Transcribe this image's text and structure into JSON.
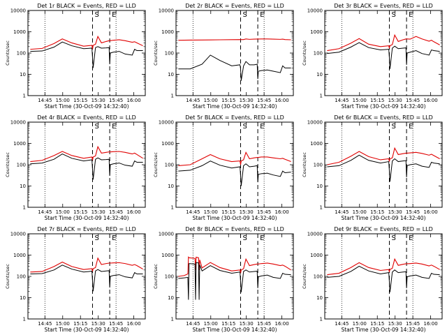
{
  "figure": {
    "panels": [
      {
        "title": "Det 1r BLACK = Events, RED = LLD",
        "ylabel": "Counts/sec",
        "xlabel": "Start Time (30-Oct-09 14:32:40)"
      },
      {
        "title": "Det 2r BLACK = Events, RED = LLD",
        "ylabel": "Counts/sec",
        "xlabel": "Start Time (30-Oct-09 14:32:40)"
      },
      {
        "title": "Det 3r BLACK = Events, RED = LLD",
        "ylabel": "Counts/sec",
        "xlabel": "Start Time (30-Oct-09 14:32:40)"
      },
      {
        "title": "Det 4r BLACK = Events, RED = LLD",
        "ylabel": "Counts/sec",
        "xlabel": "Start Time (30-Oct-09 14:32:40)"
      },
      {
        "title": "Det 5r BLACK = Events, RED = LLD",
        "ylabel": "Counts/sec",
        "xlabel": "Start Time (30-Oct-09 14:32:40)"
      },
      {
        "title": "Det 6r BLACK = Events, RED = LLD",
        "ylabel": "Counts/sec",
        "xlabel": "Start Time (30-Oct-09 14:32:40)"
      },
      {
        "title": "Det 7r BLACK = Events, RED = LLD",
        "ylabel": "Counts/sec",
        "xlabel": "Start Time (30-Oct-09 14:32:40)"
      },
      {
        "title": "Det 8r BLACK = Events, RED = LLD",
        "ylabel": "Counts/sec",
        "xlabel": "Start Time (30-Oct-09 14:32:40)"
      },
      {
        "title": "Det 9r BLACK = Events, RED = LLD",
        "ylabel": "Counts/sec",
        "xlabel": "Start Time (30-Oct-09 14:32:40)"
      }
    ],
    "marker_labels": [
      "S",
      "E"
    ]
  },
  "chart_data": {
    "type": "line",
    "x_tick_labels": [
      "14:45",
      "15:00",
      "15:15",
      "15:30",
      "15:45",
      "16:00"
    ],
    "x_tick_minutes": [
      12.33,
      27.33,
      42.33,
      57.33,
      72.33,
      87.33
    ],
    "xlim_minutes": [
      -2,
      97
    ],
    "yscale": "log",
    "ylim": [
      1,
      10000
    ],
    "y_tick_labels": [
      "1",
      "10",
      "100",
      "1000",
      "10000"
    ],
    "y_tick_values": [
      1,
      10,
      100,
      1000,
      10000
    ],
    "dotted_lines_minutes": [
      12.33,
      72.33
    ],
    "dashed_lines_minutes": [
      52.5,
      67.0
    ],
    "series_colors": {
      "events": "#000000",
      "lld": "#e00000"
    },
    "panels": [
      {
        "detector": "1r",
        "time_minutes": [
          0,
          10,
          20,
          27,
          35,
          45,
          52,
          52.5,
          53,
          55,
          57,
          60,
          64,
          66.5,
          67,
          67.5,
          70,
          75,
          80,
          86,
          88,
          90,
          95
        ],
        "lld": [
          150,
          165,
          280,
          460,
          300,
          210,
          230,
          150,
          230,
          260,
          600,
          300,
          350,
          380,
          380,
          380,
          400,
          420,
          380,
          320,
          340,
          300,
          220
        ],
        "events": [
          120,
          125,
          190,
          330,
          220,
          160,
          170,
          60,
          20,
          180,
          200,
          170,
          175,
          180,
          30,
          100,
          110,
          120,
          90,
          80,
          150,
          130,
          130
        ]
      },
      {
        "detector": "2r",
        "time_minutes": [
          0,
          10,
          20,
          27,
          35,
          45,
          52,
          52.5,
          53,
          55,
          57,
          60,
          64,
          66.5,
          67,
          67.5,
          70,
          75,
          80,
          86,
          88,
          90,
          95
        ],
        "lld": [
          400,
          405,
          410,
          415,
          420,
          425,
          430,
          425,
          430,
          430,
          460,
          440,
          450,
          455,
          455,
          455,
          460,
          460,
          450,
          440,
          450,
          430,
          420
        ],
        "events": [
          18,
          18,
          30,
          80,
          45,
          25,
          28,
          18,
          5,
          25,
          40,
          28,
          28,
          30,
          6,
          14,
          15,
          16,
          14,
          12,
          25,
          20,
          20
        ]
      },
      {
        "detector": "3r",
        "time_minutes": [
          0,
          10,
          20,
          27,
          35,
          45,
          52,
          52.5,
          53,
          55,
          57,
          60,
          64,
          66.5,
          67,
          67.5,
          70,
          75,
          80,
          86,
          88,
          90,
          95
        ],
        "lld": [
          130,
          160,
          290,
          480,
          260,
          200,
          220,
          170,
          220,
          250,
          700,
          350,
          420,
          460,
          460,
          460,
          450,
          600,
          460,
          360,
          400,
          340,
          240
        ],
        "events": [
          95,
          110,
          190,
          310,
          180,
          140,
          150,
          60,
          18,
          170,
          210,
          160,
          170,
          175,
          28,
          100,
          110,
          130,
          95,
          80,
          140,
          130,
          120
        ]
      },
      {
        "detector": "4r",
        "time_minutes": [
          0,
          10,
          20,
          27,
          35,
          45,
          52,
          52.5,
          53,
          55,
          57,
          60,
          64,
          66.5,
          67,
          67.5,
          70,
          75,
          80,
          86,
          88,
          90,
          95
        ],
        "lld": [
          140,
          160,
          270,
          420,
          270,
          200,
          230,
          160,
          230,
          260,
          700,
          350,
          380,
          400,
          400,
          400,
          410,
          420,
          380,
          320,
          350,
          300,
          200
        ],
        "events": [
          110,
          120,
          180,
          320,
          200,
          150,
          170,
          60,
          20,
          180,
          210,
          170,
          175,
          180,
          30,
          100,
          110,
          120,
          95,
          85,
          150,
          130,
          130
        ]
      },
      {
        "detector": "5r",
        "time_minutes": [
          0,
          10,
          20,
          27,
          35,
          45,
          52,
          52.5,
          53,
          55,
          57,
          60,
          64,
          66.5,
          67,
          67.5,
          70,
          75,
          80,
          86,
          88,
          90,
          95
        ],
        "lld": [
          90,
          100,
          190,
          300,
          190,
          140,
          150,
          100,
          150,
          170,
          380,
          190,
          210,
          220,
          220,
          220,
          230,
          230,
          210,
          190,
          200,
          180,
          140
        ],
        "events": [
          50,
          55,
          90,
          150,
          95,
          70,
          80,
          30,
          10,
          90,
          110,
          80,
          85,
          90,
          15,
          35,
          38,
          40,
          33,
          28,
          50,
          42,
          45
        ]
      },
      {
        "detector": "6r",
        "time_minutes": [
          0,
          10,
          20,
          27,
          35,
          45,
          52,
          52.5,
          53,
          55,
          57,
          60,
          64,
          66.5,
          67,
          67.5,
          70,
          75,
          80,
          86,
          88,
          90,
          95
        ],
        "lld": [
          100,
          130,
          250,
          420,
          240,
          170,
          190,
          140,
          190,
          210,
          600,
          300,
          330,
          350,
          350,
          350,
          360,
          380,
          340,
          280,
          310,
          270,
          190
        ],
        "events": [
          80,
          90,
          160,
          280,
          160,
          120,
          140,
          50,
          16,
          150,
          190,
          140,
          150,
          155,
          26,
          90,
          100,
          110,
          85,
          75,
          130,
          120,
          110
        ]
      },
      {
        "detector": "7r",
        "time_minutes": [
          0,
          10,
          20,
          27,
          35,
          45,
          52,
          52.5,
          53,
          55,
          57,
          60,
          64,
          66.5,
          67,
          67.5,
          70,
          75,
          80,
          86,
          88,
          90,
          95
        ],
        "lld": [
          160,
          170,
          290,
          470,
          290,
          210,
          230,
          170,
          230,
          260,
          720,
          360,
          400,
          420,
          420,
          420,
          430,
          440,
          400,
          330,
          360,
          320,
          220
        ],
        "events": [
          130,
          135,
          200,
          340,
          220,
          160,
          175,
          60,
          20,
          180,
          210,
          170,
          180,
          185,
          30,
          100,
          110,
          120,
          95,
          85,
          150,
          130,
          130
        ]
      },
      {
        "detector": "8r",
        "time_minutes": [
          0,
          5,
          8,
          8.5,
          9,
          14,
          14.5,
          15,
          17,
          17.5,
          18,
          20,
          27,
          35,
          45,
          52,
          52.5,
          53,
          55,
          57,
          60,
          64,
          66.5,
          67,
          67.5,
          70,
          75,
          80,
          86,
          88,
          90,
          95
        ],
        "lld": [
          100,
          110,
          130,
          800,
          750,
          700,
          200,
          800,
          750,
          200,
          600,
          250,
          450,
          260,
          180,
          200,
          140,
          200,
          230,
          650,
          320,
          360,
          380,
          380,
          380,
          400,
          420,
          380,
          320,
          340,
          300,
          200
        ],
        "events": [
          80,
          85,
          90,
          8,
          400,
          380,
          8,
          450,
          430,
          8,
          350,
          180,
          320,
          190,
          140,
          160,
          55,
          18,
          170,
          200,
          160,
          170,
          175,
          28,
          95,
          105,
          115,
          90,
          80,
          140,
          125,
          120
        ]
      },
      {
        "detector": "9r",
        "time_minutes": [
          0,
          10,
          20,
          27,
          35,
          45,
          52,
          52.5,
          53,
          55,
          57,
          60,
          64,
          66.5,
          67,
          67.5,
          70,
          75,
          80,
          86,
          88,
          90,
          95
        ],
        "lld": [
          120,
          140,
          260,
          440,
          260,
          190,
          210,
          160,
          210,
          240,
          650,
          330,
          370,
          390,
          390,
          390,
          400,
          420,
          380,
          310,
          340,
          300,
          210
        ],
        "events": [
          90,
          100,
          170,
          300,
          180,
          130,
          150,
          55,
          18,
          160,
          200,
          150,
          160,
          165,
          28,
          95,
          105,
          115,
          90,
          80,
          140,
          125,
          120
        ]
      }
    ]
  }
}
